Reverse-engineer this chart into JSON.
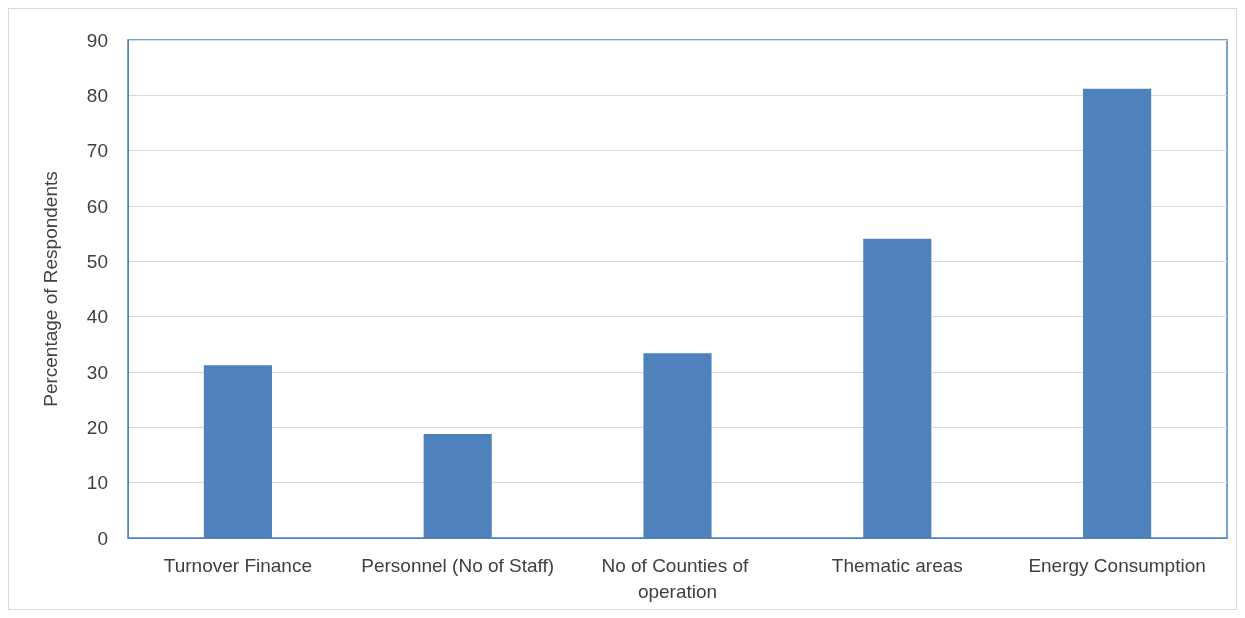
{
  "chart_data": {
    "type": "bar",
    "ylabel": "Percentage of Respondents",
    "categories": [
      "Turnover Finance",
      "Personnel (No of Staff)",
      "No of Counties of operation",
      "Thematic areas",
      "Energy Consumption"
    ],
    "values": [
      31.2,
      18.8,
      33.4,
      54.1,
      81.2
    ],
    "color": "#4f81bd",
    "ylim": [
      0,
      90
    ],
    "yticks": [
      0,
      10,
      20,
      30,
      40,
      50,
      60,
      70,
      80,
      90
    ],
    "grid": "y"
  }
}
